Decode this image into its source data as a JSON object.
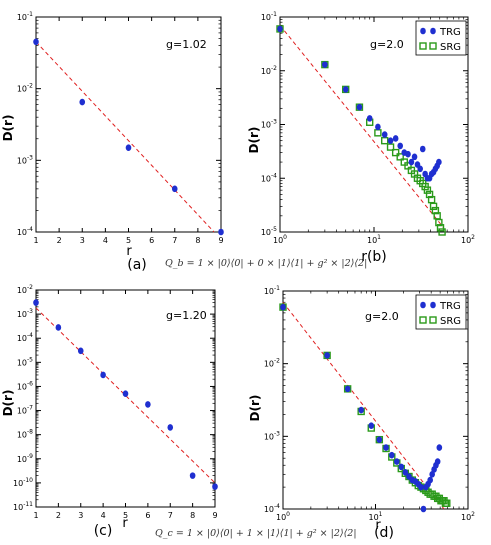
{
  "chart_data": [
    {
      "id": "a",
      "type": "scatter",
      "panel_label": "(a)",
      "caption": "Q_b = 1 × |0⟩⟨0| + 0 × |1⟩⟨1| + g² × |2⟩⟨2|",
      "annotation": "g=1.02",
      "xlabel": "r",
      "ylabel": "D(r)",
      "xscale": "linear",
      "yscale": "log",
      "xlim": [
        1,
        9
      ],
      "ylim_exp": [
        -4,
        -1
      ],
      "xticks": [
        "1",
        "2",
        "3",
        "4",
        "5",
        "6",
        "7",
        "8",
        "9"
      ],
      "yticks_exp": [
        "-4",
        "-3",
        "-2",
        "-1"
      ],
      "fit_line": [
        [
          1,
          0.045
        ],
        [
          8.7,
          0.0001
        ]
      ],
      "series": [
        {
          "color": "#1f2fd0",
          "marker": "circle",
          "x": [
            1,
            3,
            5,
            7,
            9
          ],
          "y": [
            0.045,
            0.0065,
            0.0015,
            0.0004,
            0.0001
          ]
        }
      ]
    },
    {
      "id": "b",
      "type": "scatter",
      "panel_label": "r(b)",
      "annotation": "g=2.0",
      "xlabel": "",
      "ylabel": "D(r)",
      "xscale": "log",
      "yscale": "log",
      "xlim_exp": [
        0,
        2
      ],
      "ylim_exp": [
        -5,
        -1
      ],
      "xticks_exp": [
        "0",
        "1",
        "2"
      ],
      "yticks_exp": [
        "-5",
        "-4",
        "-3",
        "-2",
        "-1"
      ],
      "legend": "top-right",
      "fit_line": [
        [
          1,
          0.07
        ],
        [
          55,
          1.2e-05
        ]
      ],
      "series": [
        {
          "name": "TRG",
          "color": "#1f2fd0",
          "marker": "circle",
          "x": [
            1,
            3,
            5,
            7,
            9,
            11,
            13,
            15,
            17,
            19,
            21,
            23,
            25,
            27,
            29,
            31,
            33,
            35,
            37,
            39,
            41,
            43,
            45,
            47,
            49
          ],
          "y": [
            0.06,
            0.013,
            0.0045,
            0.0021,
            0.0013,
            0.0009,
            0.00065,
            0.0005,
            0.00055,
            0.0004,
            0.0003,
            0.00028,
            0.0002,
            0.00025,
            0.00018,
            0.00015,
            0.00035,
            0.00012,
            0.0001,
            0.0001,
            0.00012,
            0.00013,
            0.00015,
            0.00017,
            0.0002
          ]
        },
        {
          "name": "SRG",
          "color": "#2a9a1a",
          "marker": "square",
          "x": [
            1,
            3,
            5,
            7,
            9,
            11,
            13,
            15,
            17,
            19,
            21,
            23,
            25,
            27,
            29,
            31,
            33,
            35,
            37,
            39,
            41,
            43,
            45,
            47,
            49,
            51,
            53
          ],
          "y": [
            0.06,
            0.013,
            0.0045,
            0.0021,
            0.0011,
            0.0007,
            0.0005,
            0.00038,
            0.0003,
            0.00025,
            0.0002,
            0.00017,
            0.00014,
            0.00012,
            0.0001,
            9e-05,
            8e-05,
            7e-05,
            6e-05,
            5e-05,
            4e-05,
            3e-05,
            2.5e-05,
            2e-05,
            1.5e-05,
            1.2e-05,
            1e-05
          ]
        }
      ]
    },
    {
      "id": "c",
      "type": "scatter",
      "panel_label": "(c)",
      "caption": "Q_c = 1 × |0⟩⟨0| + 1 × |1⟩⟨1| + g² × |2⟩⟨2|",
      "annotation": "g=1.20",
      "xlabel": "r",
      "ylabel": "D(r)",
      "xscale": "linear",
      "yscale": "log",
      "xlim": [
        1,
        9
      ],
      "ylim_exp": [
        -11,
        -2
      ],
      "xticks": [
        "1",
        "2",
        "3",
        "4",
        "5",
        "6",
        "7",
        "8",
        "9"
      ],
      "yticks_exp": [
        "-11",
        "-10",
        "-9",
        "-8",
        "-7",
        "-6",
        "-5",
        "-4",
        "-3",
        "-2"
      ],
      "fit_line": [
        [
          1,
          0.0018
        ],
        [
          9,
          1e-10
        ]
      ],
      "series": [
        {
          "color": "#1f2fd0",
          "marker": "circle",
          "x": [
            1,
            2,
            3,
            4,
            5,
            6,
            7,
            8,
            9
          ],
          "y": [
            0.003,
            0.00028,
            3e-05,
            3e-06,
            5e-07,
            1.8e-07,
            2e-08,
            2e-10,
            7e-11
          ]
        }
      ]
    },
    {
      "id": "d",
      "type": "scatter",
      "panel_label": "(d)",
      "annotation": "g=2.0",
      "xlabel": "r",
      "ylabel": "D(r)",
      "xscale": "log",
      "yscale": "log",
      "xlim_exp": [
        0,
        2
      ],
      "ylim_exp": [
        -4,
        -1
      ],
      "xticks_exp": [
        "0",
        "1",
        "2"
      ],
      "yticks_exp": [
        "-4",
        "-3",
        "-2",
        "-1"
      ],
      "legend": "top-right",
      "fit_line": [
        [
          1,
          0.07
        ],
        [
          55,
          0.0001
        ]
      ],
      "series": [
        {
          "name": "TRG",
          "color": "#1f2fd0",
          "marker": "circle",
          "x": [
            1,
            3,
            5,
            7,
            9,
            11,
            13,
            15,
            17,
            19,
            21,
            23,
            25,
            27,
            29,
            31,
            33,
            35,
            37,
            39,
            41,
            43,
            45,
            47,
            49
          ],
          "y": [
            0.06,
            0.013,
            0.0045,
            0.0023,
            0.0014,
            0.0009,
            0.0007,
            0.00055,
            0.00045,
            0.00038,
            0.00032,
            0.00028,
            0.00025,
            0.00024,
            0.00022,
            0.0002,
            0.0001,
            0.0002,
            0.00022,
            0.00025,
            0.0003,
            0.00035,
            0.0004,
            0.00045,
            0.0007
          ]
        },
        {
          "name": "SRG",
          "color": "#2a9a1a",
          "marker": "square",
          "x": [
            1,
            3,
            5,
            7,
            9,
            11,
            13,
            15,
            17,
            19,
            21,
            23,
            25,
            27,
            29,
            31,
            33,
            35,
            37,
            39,
            41,
            43,
            45,
            47,
            49,
            51,
            53,
            55,
            57,
            59
          ],
          "y": [
            0.06,
            0.013,
            0.0045,
            0.0022,
            0.0013,
            0.0009,
            0.00068,
            0.00052,
            0.00043,
            0.00036,
            0.00031,
            0.00028,
            0.00025,
            0.00023,
            0.00021,
            0.0002,
            0.00019,
            0.00018,
            0.00017,
            0.00016,
            0.00016,
            0.00015,
            0.00015,
            0.00014,
            0.00014,
            0.00013,
            0.00013,
            0.00013,
            0.00012,
            0.00012
          ]
        }
      ]
    }
  ]
}
